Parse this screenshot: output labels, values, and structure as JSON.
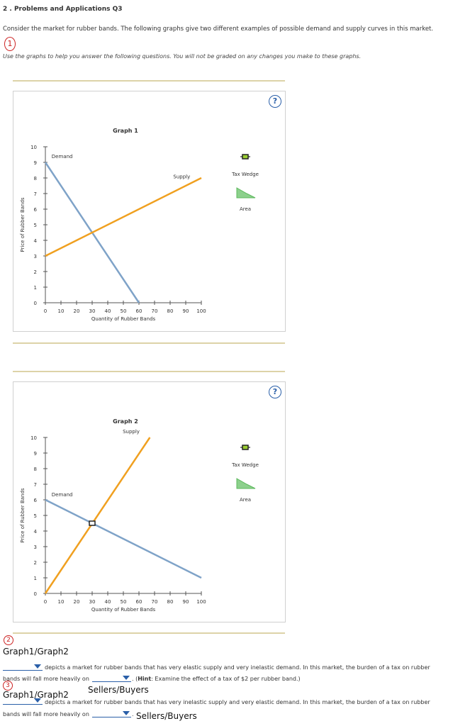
{
  "header": {
    "title": "2 . Problems and Applications Q3",
    "intro": "Consider the market for rubber bands. The following graphs give two different examples of possible demand and supply curves in this market.",
    "instruction": "Use the graphs to help you answer the following questions. You will not be graded on any changes you make to these graphs."
  },
  "annotations": {
    "mark1": "1",
    "mark2": "2",
    "mark3": "3",
    "graph_choice_1": "Graph1/Graph2",
    "side_choice_1": "Sellers/Buyers",
    "graph_choice_2": "Graph1/Graph2",
    "side_choice_2": "Sellers/Buyers"
  },
  "help_label": "?",
  "tools": {
    "tax_wedge_label": "Tax Wedge",
    "area_label": "Area"
  },
  "questions": {
    "q1_text": "depicts a market for rubber bands that has very elastic supply and very inelastic demand. In this market, the burden of a tax on rubber",
    "q1_line2_a": "bands will fall more heavily on",
    "q1_hint": "Hint",
    "q1_line2_b": ": Examine the effect of a tax of $2 per rubber band.)",
    "q1_hint_open": ". (",
    "q2_text": "depicts a market for rubber bands that has very inelastic supply and very elastic demand. In this market, the burden of a tax on rubber",
    "q2_line2": "bands will fall more heavily on",
    "q2_end": "."
  },
  "chart_data": [
    {
      "type": "line",
      "title": "Graph 1",
      "xlabel": "Quantity of Rubber Bands",
      "ylabel": "Price of Rubber Bands",
      "xlim": [
        0,
        100
      ],
      "ylim": [
        0,
        10
      ],
      "xticks": [
        0,
        10,
        20,
        30,
        40,
        50,
        60,
        70,
        80,
        90,
        100
      ],
      "yticks": [
        0,
        1,
        2,
        3,
        4,
        5,
        6,
        7,
        8,
        9,
        10
      ],
      "series": [
        {
          "name": "Demand",
          "color": "#7fa3c8",
          "points": [
            [
              0,
              9
            ],
            [
              60,
              0
            ]
          ]
        },
        {
          "name": "Supply",
          "color": "#f0a020",
          "points": [
            [
              0,
              3
            ],
            [
              100,
              8
            ]
          ]
        }
      ],
      "marker": null
    },
    {
      "type": "line",
      "title": "Graph 2",
      "xlabel": "Quantity of Rubber Bands",
      "ylabel": "Price of Rubber Bands",
      "xlim": [
        0,
        100
      ],
      "ylim": [
        0,
        10
      ],
      "xticks": [
        0,
        10,
        20,
        30,
        40,
        50,
        60,
        70,
        80,
        90,
        100
      ],
      "yticks": [
        0,
        1,
        2,
        3,
        4,
        5,
        6,
        7,
        8,
        9,
        10
      ],
      "series": [
        {
          "name": "Demand",
          "color": "#7fa3c8",
          "points": [
            [
              0,
              6
            ],
            [
              100,
              1
            ]
          ]
        },
        {
          "name": "Supply",
          "color": "#f0a020",
          "points": [
            [
              0,
              0
            ],
            [
              67,
              10
            ]
          ]
        }
      ],
      "marker": [
        30,
        4.5
      ]
    }
  ]
}
